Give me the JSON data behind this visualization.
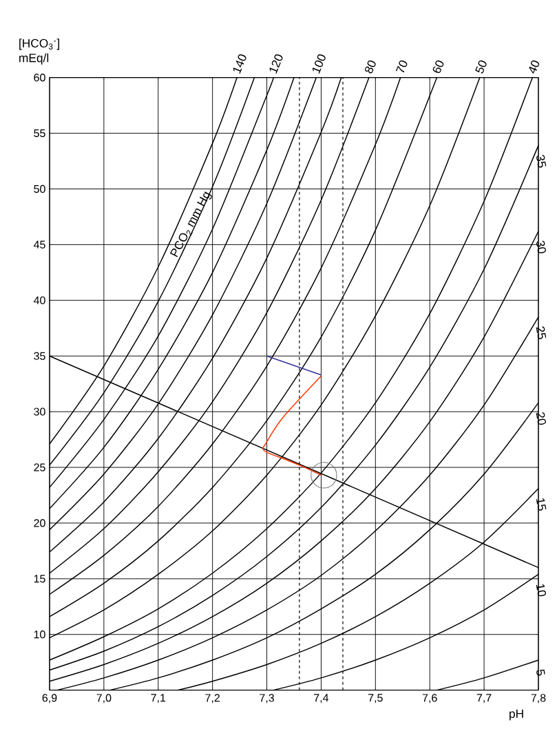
{
  "chart_data": {
    "type": "line",
    "xlabel": "pH",
    "ylabel": "[HCO$_{3}$$^{-}$] mEq/l",
    "annotations": [
      "PCO$_{2}$ mm Hg"
    ],
    "xlim": [
      6.9,
      7.8
    ],
    "ylim": [
      5,
      60
    ],
    "xticks": [
      {
        "value": 6.9,
        "label": "6,9"
      },
      {
        "value": 7.0,
        "label": "7,0"
      },
      {
        "value": 7.1,
        "label": "7,1"
      },
      {
        "value": 7.2,
        "label": "7,2"
      },
      {
        "value": 7.3,
        "label": "7,3"
      },
      {
        "value": 7.4,
        "label": "7,4"
      },
      {
        "value": 7.5,
        "label": "7,5"
      },
      {
        "value": 7.6,
        "label": "7,6"
      },
      {
        "value": 7.7,
        "label": "7,7"
      },
      {
        "value": 7.8,
        "label": "7,8"
      }
    ],
    "yticks": [
      10,
      15,
      20,
      25,
      30,
      35,
      40,
      45,
      50,
      55,
      60
    ],
    "grid": true,
    "legend": "right",
    "marker": "none",
    "line_style": "solid",
    "ref_lines": [
      {
        "axis": "x",
        "value": 7.36,
        "line_style": "dashed"
      },
      {
        "axis": "x",
        "value": 7.44,
        "line_style": "dashed"
      }
    ],
    "series": [
      {
        "name": "140",
        "color": "#000000",
        "x": [
          6.9,
          7.0,
          7.1,
          7.2,
          7.245
        ],
        "values": [
          27.1,
          34.1,
          43.0,
          54.1,
          60
        ]
      },
      {
        "color": "#000000",
        "x": [
          6.9,
          7.0,
          7.1,
          7.2,
          7.277
        ],
        "values": [
          25.2,
          31.7,
          39.9,
          50.2,
          60
        ]
      },
      {
        "name": "120",
        "color": "#000000",
        "x": [
          6.9,
          7.0,
          7.1,
          7.2,
          7.3,
          7.312
        ],
        "values": [
          23.2,
          29.3,
          36.8,
          46.4,
          58.4,
          60
        ]
      },
      {
        "color": "#000000",
        "x": [
          6.9,
          7.0,
          7.1,
          7.2,
          7.3,
          7.35
        ],
        "values": [
          21.3,
          26.8,
          33.8,
          42.5,
          53.5,
          60
        ]
      },
      {
        "name": "100",
        "color": "#000000",
        "x": [
          6.9,
          7.0,
          7.1,
          7.2,
          7.3,
          7.391
        ],
        "values": [
          19.4,
          24.4,
          30.7,
          38.7,
          48.7,
          60
        ]
      },
      {
        "color": "#000000",
        "x": [
          6.9,
          7.0,
          7.1,
          7.2,
          7.3,
          7.4,
          7.437
        ],
        "values": [
          17.4,
          21.9,
          27.6,
          34.8,
          43.8,
          55.1,
          60
        ]
      },
      {
        "name": "80",
        "color": "#000000",
        "x": [
          6.9,
          7.0,
          7.1,
          7.2,
          7.3,
          7.4,
          7.488
        ],
        "values": [
          15.5,
          19.5,
          24.6,
          30.9,
          38.9,
          49.0,
          60
        ]
      },
      {
        "name": "70",
        "color": "#000000",
        "x": [
          6.9,
          7.0,
          7.1,
          7.2,
          7.3,
          7.4,
          7.5,
          7.546
        ],
        "values": [
          13.6,
          17.1,
          21.5,
          27.1,
          34.1,
          42.9,
          54.0,
          60
        ]
      },
      {
        "name": "60",
        "color": "#000000",
        "x": [
          6.9,
          7.0,
          7.1,
          7.2,
          7.3,
          7.4,
          7.5,
          7.613
        ],
        "values": [
          11.6,
          14.6,
          18.4,
          23.2,
          29.2,
          36.7,
          46.3,
          60
        ]
      },
      {
        "name": "50",
        "color": "#000000",
        "x": [
          6.9,
          7.0,
          7.1,
          7.2,
          7.3,
          7.4,
          7.5,
          7.6,
          7.692
        ],
        "values": [
          9.7,
          12.2,
          15.4,
          19.3,
          24.3,
          30.6,
          38.6,
          48.5,
          60
        ]
      },
      {
        "name": "40",
        "color": "#000000",
        "x": [
          6.9,
          7.0,
          7.1,
          7.2,
          7.3,
          7.4,
          7.5,
          7.6,
          7.7,
          7.789
        ],
        "values": [
          7.7,
          9.8,
          12.3,
          15.5,
          19.5,
          24.5,
          30.8,
          38.8,
          48.9,
          60
        ]
      },
      {
        "name": "35",
        "color": "#000000",
        "x": [
          6.9,
          7.0,
          7.1,
          7.2,
          7.3,
          7.4,
          7.5,
          7.6,
          7.7,
          7.8
        ],
        "values": [
          6.8,
          8.5,
          10.7,
          13.5,
          17.0,
          21.4,
          27.0,
          34.0,
          42.8,
          53.9
        ]
      },
      {
        "name": "30",
        "color": "#000000",
        "x": [
          6.9,
          7.0,
          7.1,
          7.2,
          7.3,
          7.4,
          7.5,
          7.6,
          7.7,
          7.8
        ],
        "values": [
          5.8,
          7.3,
          9.2,
          11.6,
          14.6,
          18.4,
          23.1,
          29.1,
          36.7,
          46.2
        ]
      },
      {
        "name": "25",
        "color": "#000000",
        "x": [
          6.914,
          7.0,
          7.1,
          7.2,
          7.3,
          7.4,
          7.5,
          7.6,
          7.7,
          7.8
        ],
        "values": [
          5,
          6.1,
          7.7,
          9.7,
          12.2,
          15.3,
          19.3,
          24.3,
          30.6,
          38.5
        ]
      },
      {
        "name": "20",
        "color": "#000000",
        "x": [
          7.011,
          7.1,
          7.2,
          7.3,
          7.4,
          7.5,
          7.6,
          7.7,
          7.8
        ],
        "values": [
          5,
          6.1,
          7.7,
          9.7,
          12.3,
          15.4,
          19.4,
          24.4,
          30.8
        ]
      },
      {
        "name": "15",
        "color": "#000000",
        "x": [
          7.136,
          7.2,
          7.3,
          7.4,
          7.5,
          7.6,
          7.7,
          7.8
        ],
        "values": [
          5,
          5.8,
          7.3,
          9.2,
          11.6,
          14.6,
          18.3,
          23.1
        ]
      },
      {
        "name": "10",
        "color": "#000000",
        "x": [
          7.312,
          7.4,
          7.5,
          7.6,
          7.7,
          7.8
        ],
        "values": [
          5,
          6.1,
          7.7,
          9.7,
          12.2,
          15.4
        ]
      },
      {
        "name": "5",
        "color": "#000000",
        "x": [
          7.613,
          7.7,
          7.8
        ],
        "values": [
          5,
          6.1,
          7.7
        ]
      },
      {
        "color": "#000000",
        "x": [
          6.9,
          7.8
        ],
        "values": [
          35,
          16
        ]
      },
      {
        "type": "scatter",
        "marker": "circle",
        "color": "#777777",
        "x": [
          7.405
        ],
        "values": [
          24.3
        ]
      },
      {
        "color": "#ff3300",
        "x": [
          7.4,
          7.37,
          7.335,
          7.295,
          7.3,
          7.33,
          7.4
        ],
        "values": [
          24.3,
          25.0,
          25.7,
          26.5,
          27.3,
          29.5,
          33.2
        ]
      },
      {
        "color": "#333399",
        "x": [
          7.4,
          7.3
        ],
        "values": [
          33.3,
          35.0
        ]
      }
    ]
  }
}
